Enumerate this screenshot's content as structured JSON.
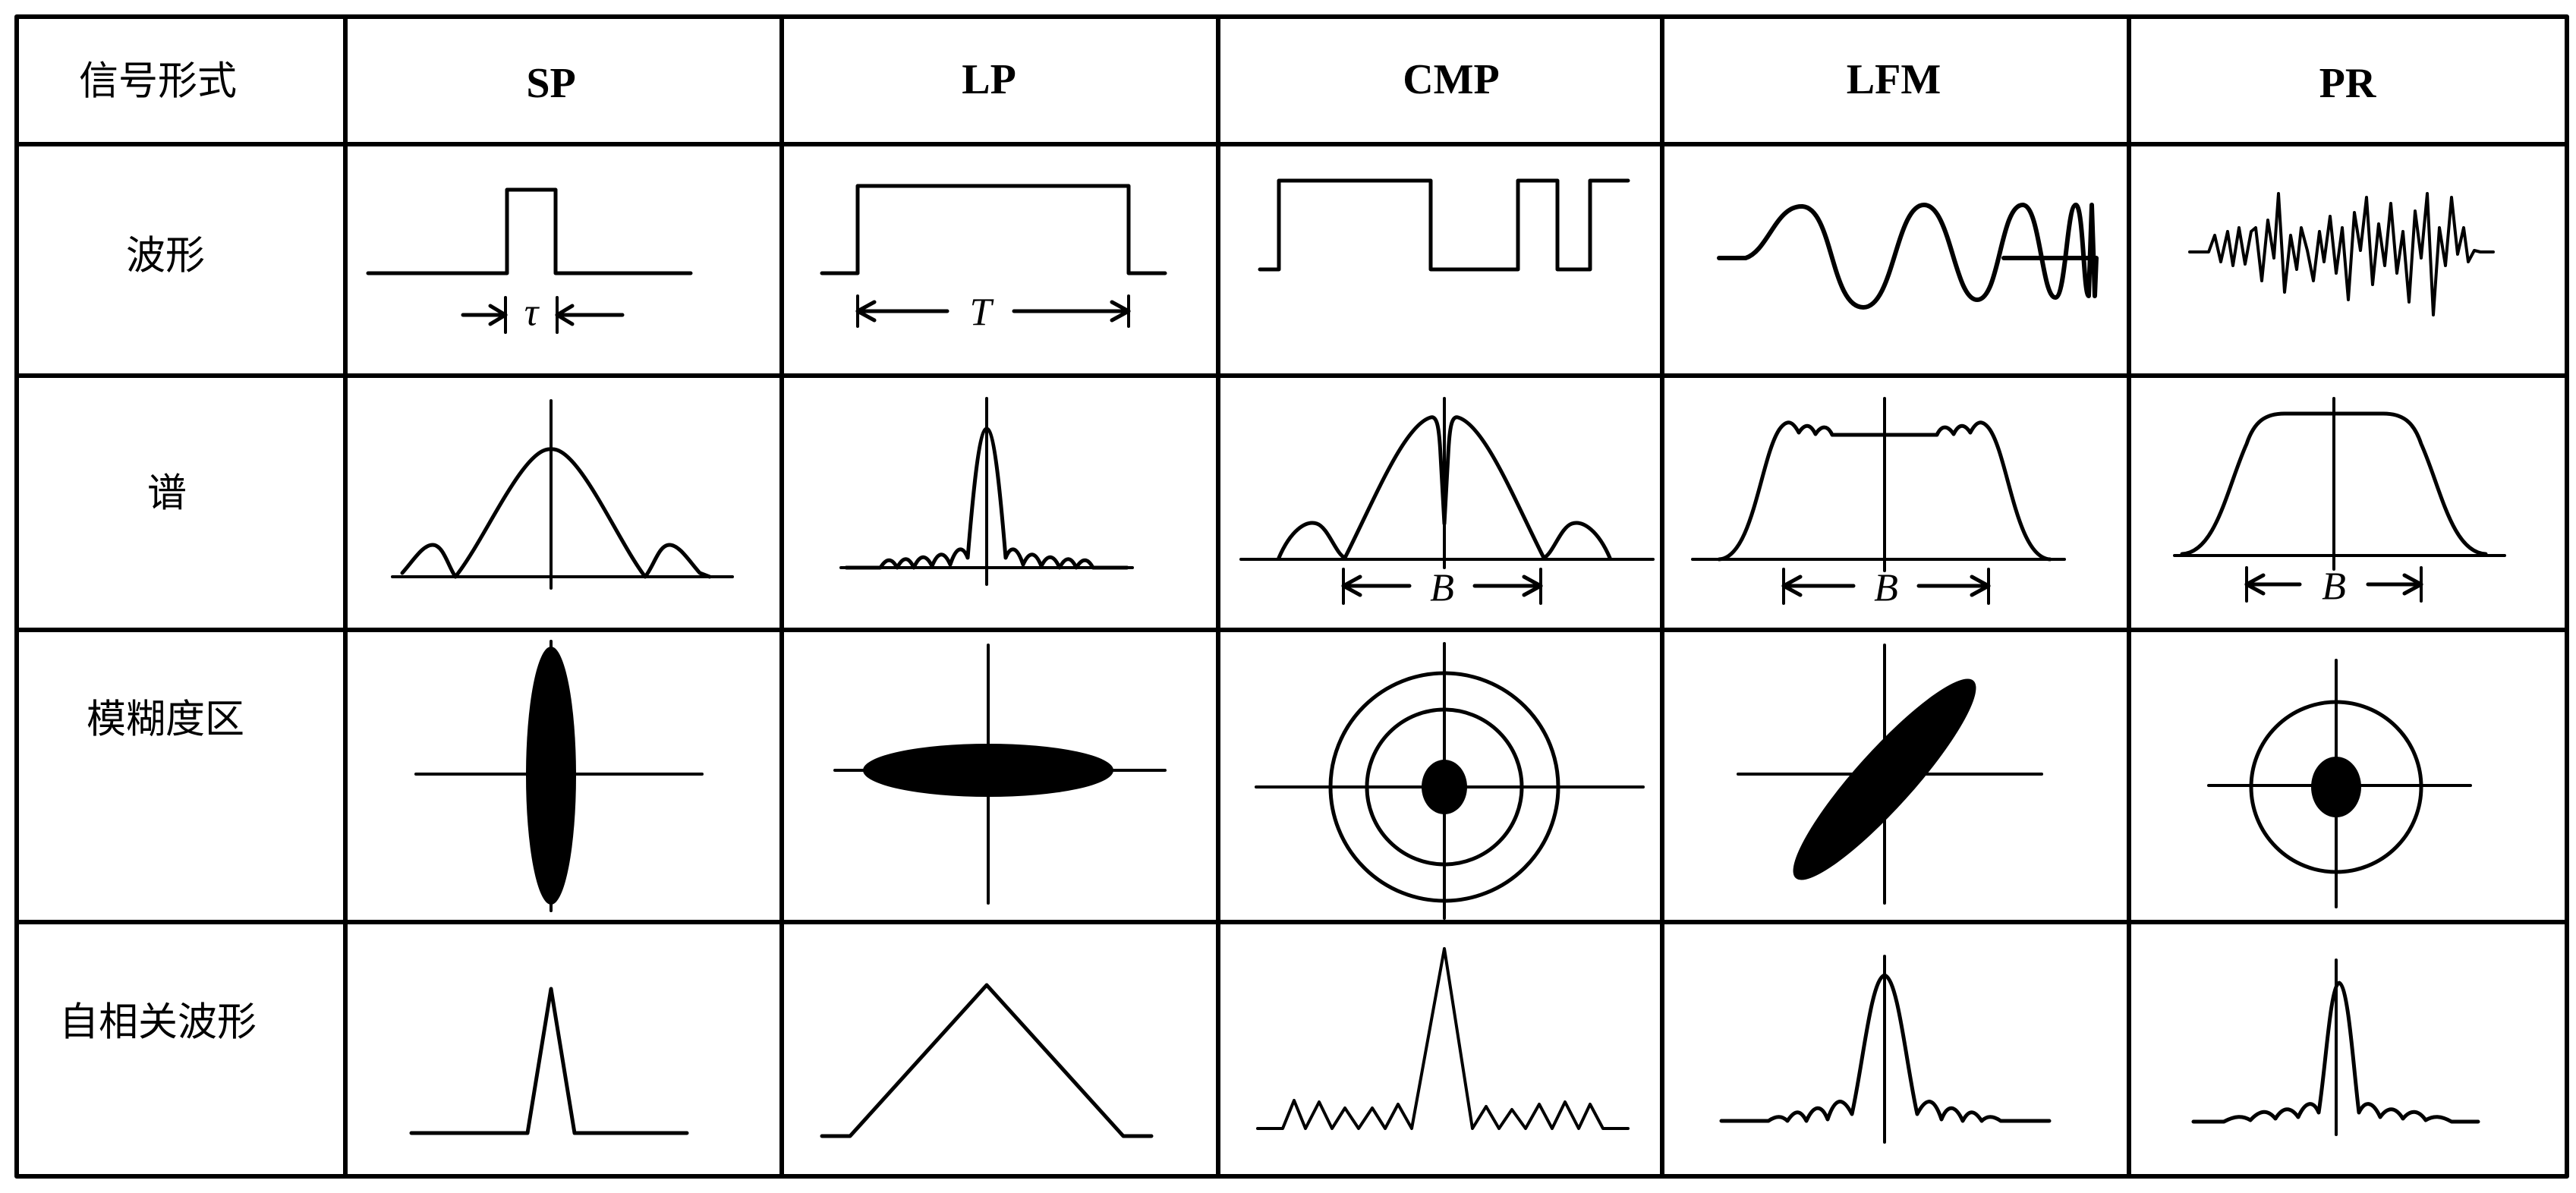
{
  "header": {
    "corner": "信号形式",
    "columns": [
      "SP",
      "LP",
      "CMP",
      "LFM",
      "PR"
    ]
  },
  "rows": [
    "波形",
    "谱",
    "模糊度区",
    "自相关波形"
  ],
  "annotations": {
    "sp_width": "τ",
    "lp_duration": "T",
    "cmp_bandwidth": "B",
    "lfm_bandwidth": "B",
    "pr_bandwidth": "B"
  },
  "colors": {
    "ink": "#000000",
    "background": "#ffffff"
  }
}
